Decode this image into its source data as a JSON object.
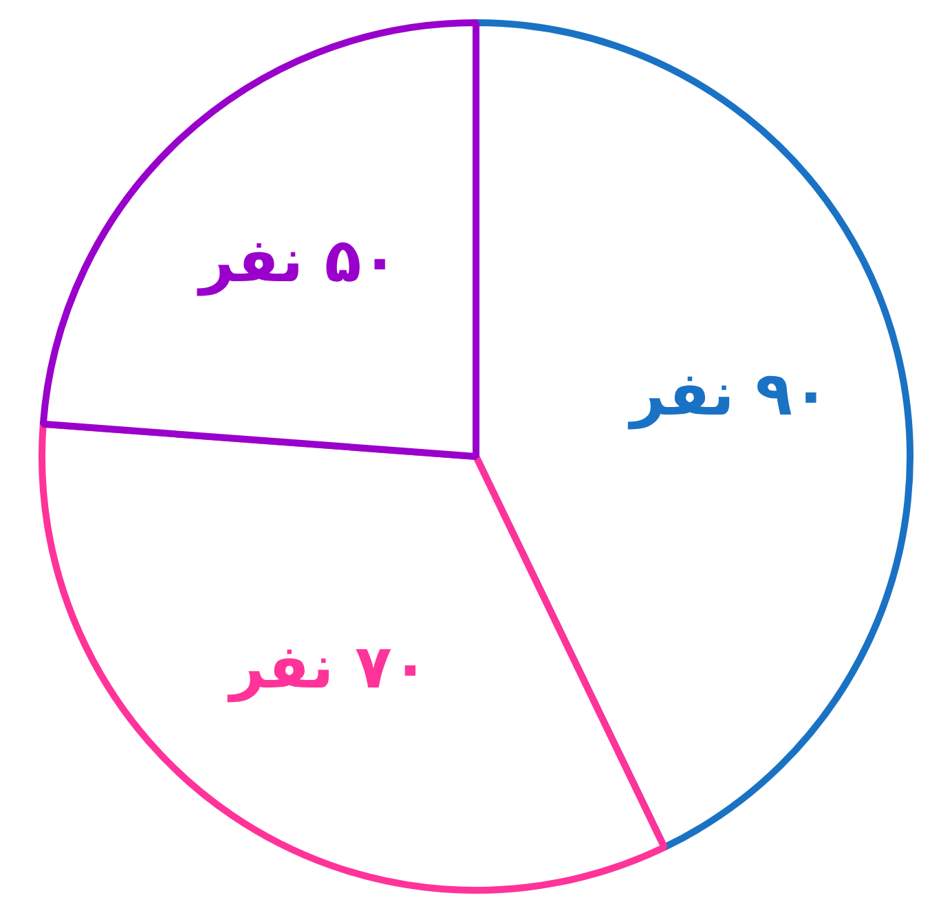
{
  "chart_data": {
    "type": "pie",
    "categories": [
      "۹۰ نفر",
      "۷۰ نفر",
      "۵۰ نفر"
    ],
    "values": [
      90,
      70,
      50
    ],
    "colors": [
      "#1a72c4",
      "#ff3399",
      "#9900cc"
    ]
  }
}
